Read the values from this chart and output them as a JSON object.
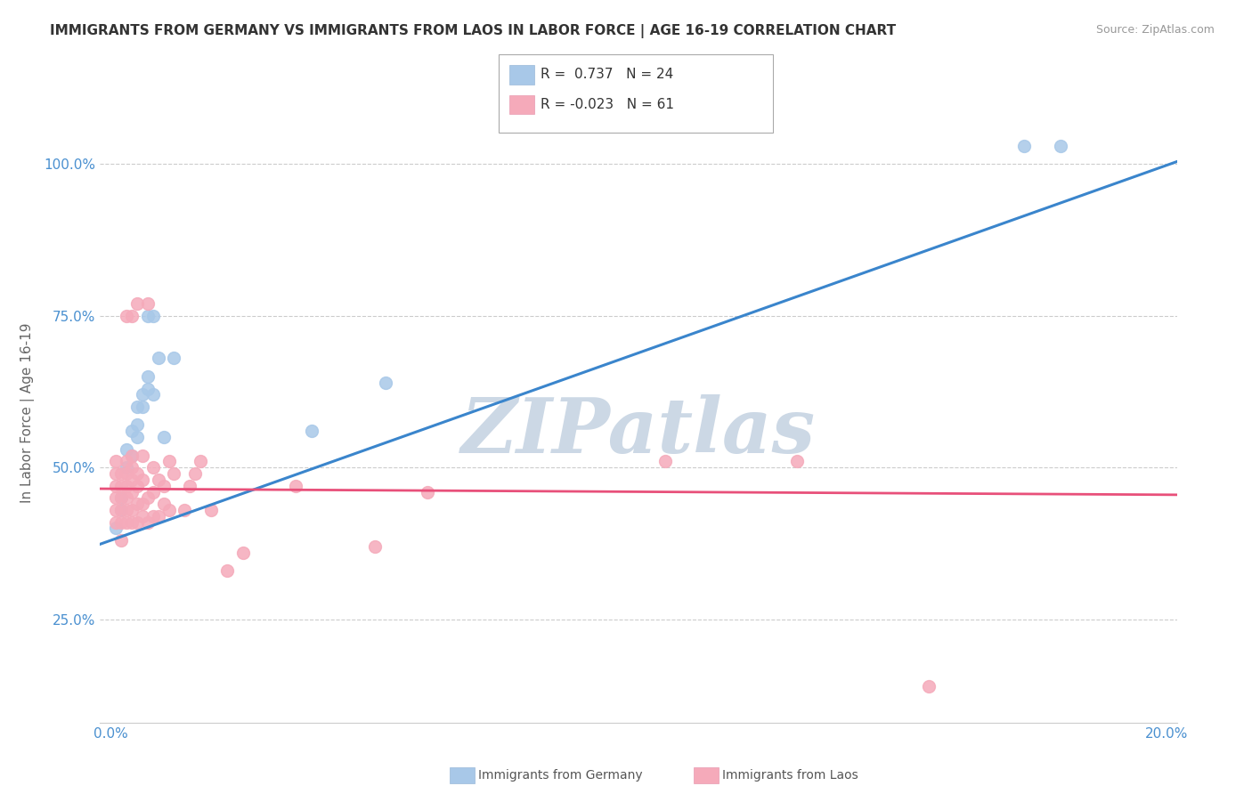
{
  "title": "IMMIGRANTS FROM GERMANY VS IMMIGRANTS FROM LAOS IN LABOR FORCE | AGE 16-19 CORRELATION CHART",
  "source": "Source: ZipAtlas.com",
  "ylabel": "In Labor Force | Age 16-19",
  "xlim": [
    -0.002,
    0.202
  ],
  "ylim": [
    0.08,
    1.1
  ],
  "xticks": [
    0.0,
    0.02,
    0.04,
    0.06,
    0.08,
    0.1,
    0.12,
    0.14,
    0.16,
    0.18,
    0.2
  ],
  "xticklabels": [
    "0.0%",
    "",
    "",
    "",
    "",
    "",
    "",
    "",
    "",
    "",
    "20.0%"
  ],
  "yticks": [
    0.25,
    0.5,
    0.75,
    1.0
  ],
  "yticklabels": [
    "25.0%",
    "50.0%",
    "75.0%",
    "100.0%"
  ],
  "germany_color": "#a8c8e8",
  "laos_color": "#f5aaba",
  "germany_line_color": "#3a85cc",
  "laos_line_color": "#e8507a",
  "watermark_color": "#ccd8e5",
  "legend_R_germany": "0.737",
  "legend_N_germany": "24",
  "legend_R_laos": "-0.023",
  "legend_N_laos": "61",
  "germany_x": [
    0.001,
    0.002,
    0.002,
    0.003,
    0.003,
    0.004,
    0.004,
    0.005,
    0.005,
    0.005,
    0.006,
    0.006,
    0.007,
    0.007,
    0.007,
    0.008,
    0.008,
    0.009,
    0.01,
    0.012,
    0.038,
    0.052,
    0.173,
    0.18
  ],
  "germany_y": [
    0.4,
    0.43,
    0.45,
    0.5,
    0.53,
    0.52,
    0.56,
    0.55,
    0.57,
    0.6,
    0.6,
    0.62,
    0.63,
    0.65,
    0.75,
    0.75,
    0.62,
    0.68,
    0.55,
    0.68,
    0.56,
    0.64,
    1.03,
    1.03
  ],
  "laos_x": [
    0.001,
    0.001,
    0.001,
    0.001,
    0.001,
    0.001,
    0.002,
    0.002,
    0.002,
    0.002,
    0.002,
    0.002,
    0.003,
    0.003,
    0.003,
    0.003,
    0.003,
    0.003,
    0.003,
    0.004,
    0.004,
    0.004,
    0.004,
    0.004,
    0.004,
    0.004,
    0.005,
    0.005,
    0.005,
    0.005,
    0.005,
    0.006,
    0.006,
    0.006,
    0.006,
    0.007,
    0.007,
    0.007,
    0.008,
    0.008,
    0.008,
    0.009,
    0.009,
    0.01,
    0.01,
    0.011,
    0.011,
    0.012,
    0.014,
    0.015,
    0.016,
    0.017,
    0.019,
    0.022,
    0.025,
    0.035,
    0.05,
    0.06,
    0.105,
    0.13,
    0.155
  ],
  "laos_y": [
    0.41,
    0.43,
    0.45,
    0.47,
    0.49,
    0.51,
    0.41,
    0.43,
    0.45,
    0.47,
    0.49,
    0.38,
    0.41,
    0.43,
    0.45,
    0.47,
    0.49,
    0.51,
    0.75,
    0.41,
    0.43,
    0.46,
    0.48,
    0.5,
    0.52,
    0.75,
    0.41,
    0.44,
    0.47,
    0.49,
    0.77,
    0.42,
    0.44,
    0.48,
    0.52,
    0.41,
    0.45,
    0.77,
    0.42,
    0.46,
    0.5,
    0.42,
    0.48,
    0.44,
    0.47,
    0.43,
    0.51,
    0.49,
    0.43,
    0.47,
    0.49,
    0.51,
    0.43,
    0.33,
    0.36,
    0.47,
    0.37,
    0.46,
    0.51,
    0.51,
    0.14
  ],
  "germany_trend": [
    0.38,
    1.01
  ],
  "laos_trend": [
    0.465,
    0.455
  ]
}
